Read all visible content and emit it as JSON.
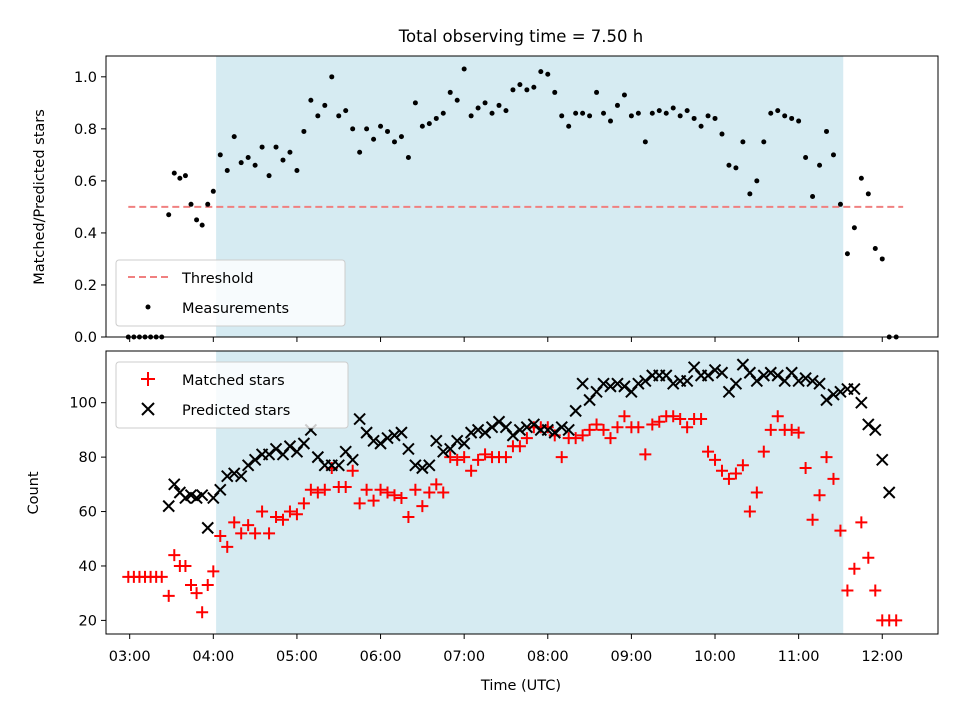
{
  "chart_data": [
    {
      "type": "scatter",
      "title": "Total observing time = 7.50 h",
      "ylabel": "Matched/Predicted stars",
      "xlabel": "",
      "xlim": [
        "02:43",
        "12:40"
      ],
      "ylim": [
        0,
        1.08
      ],
      "x_ticks": [
        "03:00",
        "04:00",
        "05:00",
        "06:00",
        "07:00",
        "08:00",
        "09:00",
        "10:00",
        "11:00",
        "12:00"
      ],
      "y_ticks": [
        "0.0",
        "0.2",
        "0.4",
        "0.6",
        "0.8",
        "1.0"
      ],
      "shaded_interval": [
        "04:02",
        "11:32"
      ],
      "shade_color": "#add8e6",
      "legend_position": "lower-left",
      "threshold": {
        "name": "Threshold",
        "value": 0.5,
        "x_range": [
          "02:59",
          "12:15"
        ],
        "color": "#f08080"
      },
      "series": [
        {
          "name": "Measurements",
          "color": "#000000",
          "x": [
            "02:59",
            "03:03",
            "03:07",
            "03:11",
            "03:15",
            "03:19",
            "03:23",
            "03:28",
            "03:32",
            "03:36",
            "03:40",
            "03:44",
            "03:48",
            "03:52",
            "03:56",
            "04:00",
            "04:05",
            "04:10",
            "04:15",
            "04:20",
            "04:25",
            "04:30",
            "04:35",
            "04:40",
            "04:45",
            "04:50",
            "04:55",
            "05:00",
            "05:05",
            "05:10",
            "05:15",
            "05:20",
            "05:25",
            "05:30",
            "05:35",
            "05:40",
            "05:45",
            "05:50",
            "05:55",
            "06:00",
            "06:05",
            "06:10",
            "06:15",
            "06:20",
            "06:25",
            "06:30",
            "06:35",
            "06:40",
            "06:45",
            "06:50",
            "06:55",
            "07:00",
            "07:05",
            "07:10",
            "07:15",
            "07:20",
            "07:25",
            "07:30",
            "07:35",
            "07:40",
            "07:45",
            "07:50",
            "07:55",
            "08:00",
            "08:05",
            "08:10",
            "08:15",
            "08:20",
            "08:25",
            "08:30",
            "08:35",
            "08:40",
            "08:45",
            "08:50",
            "08:55",
            "09:00",
            "09:05",
            "09:10",
            "09:15",
            "09:20",
            "09:25",
            "09:30",
            "09:35",
            "09:40",
            "09:45",
            "09:50",
            "09:55",
            "10:00",
            "10:05",
            "10:10",
            "10:15",
            "10:20",
            "10:25",
            "10:30",
            "10:35",
            "10:40",
            "10:45",
            "10:50",
            "10:55",
            "11:00",
            "11:05",
            "11:10",
            "11:15",
            "11:20",
            "11:25",
            "11:30",
            "11:35",
            "11:40",
            "11:45",
            "11:50",
            "11:55",
            "12:00",
            "12:05",
            "12:10"
          ],
          "y": [
            0.0,
            0.0,
            0.0,
            0.0,
            0.0,
            0.0,
            0.0,
            0.47,
            0.63,
            0.61,
            0.62,
            0.51,
            0.45,
            0.43,
            0.51,
            0.56,
            0.7,
            0.64,
            0.77,
            0.67,
            0.69,
            0.66,
            0.73,
            0.62,
            0.73,
            0.68,
            0.71,
            0.64,
            0.79,
            0.91,
            0.85,
            0.89,
            1.0,
            0.85,
            0.87,
            0.8,
            0.71,
            0.8,
            0.76,
            0.81,
            0.79,
            0.75,
            0.77,
            0.69,
            0.9,
            0.81,
            0.82,
            0.84,
            0.86,
            0.94,
            0.91,
            1.03,
            0.85,
            0.88,
            0.9,
            0.86,
            0.89,
            0.87,
            0.95,
            0.97,
            0.95,
            0.96,
            1.02,
            1.01,
            0.94,
            0.85,
            0.81,
            0.86,
            0.86,
            0.85,
            0.94,
            0.86,
            0.83,
            0.89,
            0.93,
            0.85,
            0.86,
            0.75,
            0.86,
            0.87,
            0.86,
            0.88,
            0.85,
            0.87,
            0.84,
            0.81,
            0.85,
            0.84,
            0.78,
            0.66,
            0.65,
            0.75,
            0.55,
            0.6,
            0.75,
            0.86,
            0.87,
            0.85,
            0.84,
            0.83,
            0.69,
            0.54,
            0.66,
            0.79,
            0.7,
            0.51,
            0.32,
            0.42,
            0.61,
            0.55,
            0.34,
            0.3,
            0.0,
            0.0
          ]
        }
      ]
    },
    {
      "type": "scatter",
      "title": "",
      "xlabel": "Time (UTC)",
      "ylabel": "Count",
      "xlim": [
        "02:43",
        "12:40"
      ],
      "ylim": [
        15,
        119
      ],
      "x_ticks": [
        "03:00",
        "04:00",
        "05:00",
        "06:00",
        "07:00",
        "08:00",
        "09:00",
        "10:00",
        "11:00",
        "12:00"
      ],
      "y_ticks": [
        "20",
        "40",
        "60",
        "80",
        "100"
      ],
      "shaded_interval": [
        "04:02",
        "11:32"
      ],
      "shade_color": "#add8e6",
      "legend_position": "upper-left",
      "series": [
        {
          "name": "Matched stars",
          "marker": "plus",
          "color": "#ff0000",
          "x": [
            "02:59",
            "03:03",
            "03:07",
            "03:11",
            "03:15",
            "03:19",
            "03:23",
            "03:28",
            "03:32",
            "03:36",
            "03:40",
            "03:44",
            "03:48",
            "03:52",
            "03:56",
            "04:00",
            "04:05",
            "04:10",
            "04:15",
            "04:20",
            "04:25",
            "04:30",
            "04:35",
            "04:40",
            "04:45",
            "04:50",
            "04:55",
            "05:00",
            "05:05",
            "05:10",
            "05:15",
            "05:20",
            "05:25",
            "05:30",
            "05:35",
            "05:40",
            "05:45",
            "05:50",
            "05:55",
            "06:00",
            "06:05",
            "06:10",
            "06:15",
            "06:20",
            "06:25",
            "06:30",
            "06:35",
            "06:40",
            "06:45",
            "06:50",
            "06:55",
            "07:00",
            "07:05",
            "07:10",
            "07:15",
            "07:20",
            "07:25",
            "07:30",
            "07:35",
            "07:40",
            "07:45",
            "07:50",
            "07:55",
            "08:00",
            "08:05",
            "08:10",
            "08:15",
            "08:20",
            "08:25",
            "08:30",
            "08:35",
            "08:40",
            "08:45",
            "08:50",
            "08:55",
            "09:00",
            "09:05",
            "09:10",
            "09:15",
            "09:20",
            "09:25",
            "09:30",
            "09:35",
            "09:40",
            "09:45",
            "09:50",
            "09:55",
            "10:00",
            "10:05",
            "10:10",
            "10:15",
            "10:20",
            "10:25",
            "10:30",
            "10:35",
            "10:40",
            "10:45",
            "10:50",
            "10:55",
            "11:00",
            "11:05",
            "11:10",
            "11:15",
            "11:20",
            "11:25",
            "11:30",
            "11:35",
            "11:40",
            "11:45",
            "11:50",
            "11:55",
            "12:00",
            "12:05",
            "12:10"
          ],
          "y": [
            36,
            36,
            36,
            36,
            36,
            36,
            36,
            29,
            44,
            40,
            40,
            33,
            30,
            23,
            33,
            38,
            51,
            47,
            56,
            52,
            55,
            52,
            60,
            52,
            58,
            57,
            60,
            59,
            63,
            68,
            67,
            68,
            76,
            69,
            69,
            75,
            63,
            68,
            64,
            68,
            67,
            66,
            65,
            58,
            68,
            62,
            67,
            70,
            67,
            80,
            79,
            80,
            75,
            79,
            81,
            80,
            80,
            80,
            84,
            84,
            87,
            91,
            91,
            91,
            88,
            80,
            87,
            87,
            88,
            90,
            92,
            90,
            87,
            91,
            95,
            91,
            91,
            81,
            92,
            93,
            95,
            95,
            94,
            91,
            94,
            94,
            82,
            79,
            75,
            72,
            74,
            77,
            60,
            67,
            82,
            90,
            95,
            90,
            90,
            89,
            76,
            57,
            66,
            80,
            72,
            53,
            31,
            39,
            56,
            43,
            31,
            20,
            20,
            20
          ]
        },
        {
          "name": "Predicted stars",
          "marker": "cross",
          "color": "#000000",
          "x": [
            "03:28",
            "03:32",
            "03:36",
            "03:40",
            "03:44",
            "03:48",
            "03:52",
            "03:56",
            "04:00",
            "04:05",
            "04:10",
            "04:15",
            "04:20",
            "04:25",
            "04:30",
            "04:35",
            "04:40",
            "04:45",
            "04:50",
            "04:55",
            "05:00",
            "05:05",
            "05:10",
            "05:15",
            "05:20",
            "05:25",
            "05:30",
            "05:35",
            "05:40",
            "05:45",
            "05:50",
            "05:55",
            "06:00",
            "06:05",
            "06:10",
            "06:15",
            "06:20",
            "06:25",
            "06:30",
            "06:35",
            "06:40",
            "06:45",
            "06:50",
            "06:55",
            "07:00",
            "07:05",
            "07:10",
            "07:15",
            "07:20",
            "07:25",
            "07:30",
            "07:35",
            "07:40",
            "07:45",
            "07:50",
            "07:55",
            "08:00",
            "08:05",
            "08:10",
            "08:15",
            "08:20",
            "08:25",
            "08:30",
            "08:35",
            "08:40",
            "08:45",
            "08:50",
            "08:55",
            "09:00",
            "09:05",
            "09:10",
            "09:15",
            "09:20",
            "09:25",
            "09:30",
            "09:35",
            "09:40",
            "09:45",
            "09:50",
            "09:55",
            "10:00",
            "10:05",
            "10:10",
            "10:15",
            "10:20",
            "10:25",
            "10:30",
            "10:35",
            "10:40",
            "10:45",
            "10:50",
            "10:55",
            "11:00",
            "11:05",
            "11:10",
            "11:15",
            "11:20",
            "11:25",
            "11:30",
            "11:35",
            "11:40",
            "11:45",
            "11:50",
            "11:55",
            "12:00",
            "12:05"
          ],
          "y": [
            62,
            70,
            67,
            65,
            66,
            65,
            66,
            54,
            65,
            68,
            73,
            74,
            73,
            77,
            79,
            81,
            81,
            83,
            81,
            84,
            82,
            85,
            90,
            80,
            77,
            77,
            77,
            82,
            79,
            94,
            89,
            86,
            85,
            87,
            88,
            89,
            83,
            77,
            76,
            77,
            86,
            82,
            83,
            86,
            85,
            89,
            90,
            89,
            91,
            93,
            91,
            88,
            90,
            91,
            92,
            90,
            90,
            89,
            91,
            90,
            97,
            107,
            101,
            104,
            107,
            106,
            107,
            106,
            104,
            107,
            108,
            110,
            110,
            110,
            107,
            108,
            108,
            113,
            110,
            110,
            112,
            111,
            104,
            107,
            114,
            111,
            108,
            110,
            111,
            110,
            108,
            111,
            108,
            109,
            108,
            107,
            101,
            103,
            104,
            105,
            105,
            100,
            92,
            90,
            79,
            67
          ]
        }
      ]
    }
  ]
}
